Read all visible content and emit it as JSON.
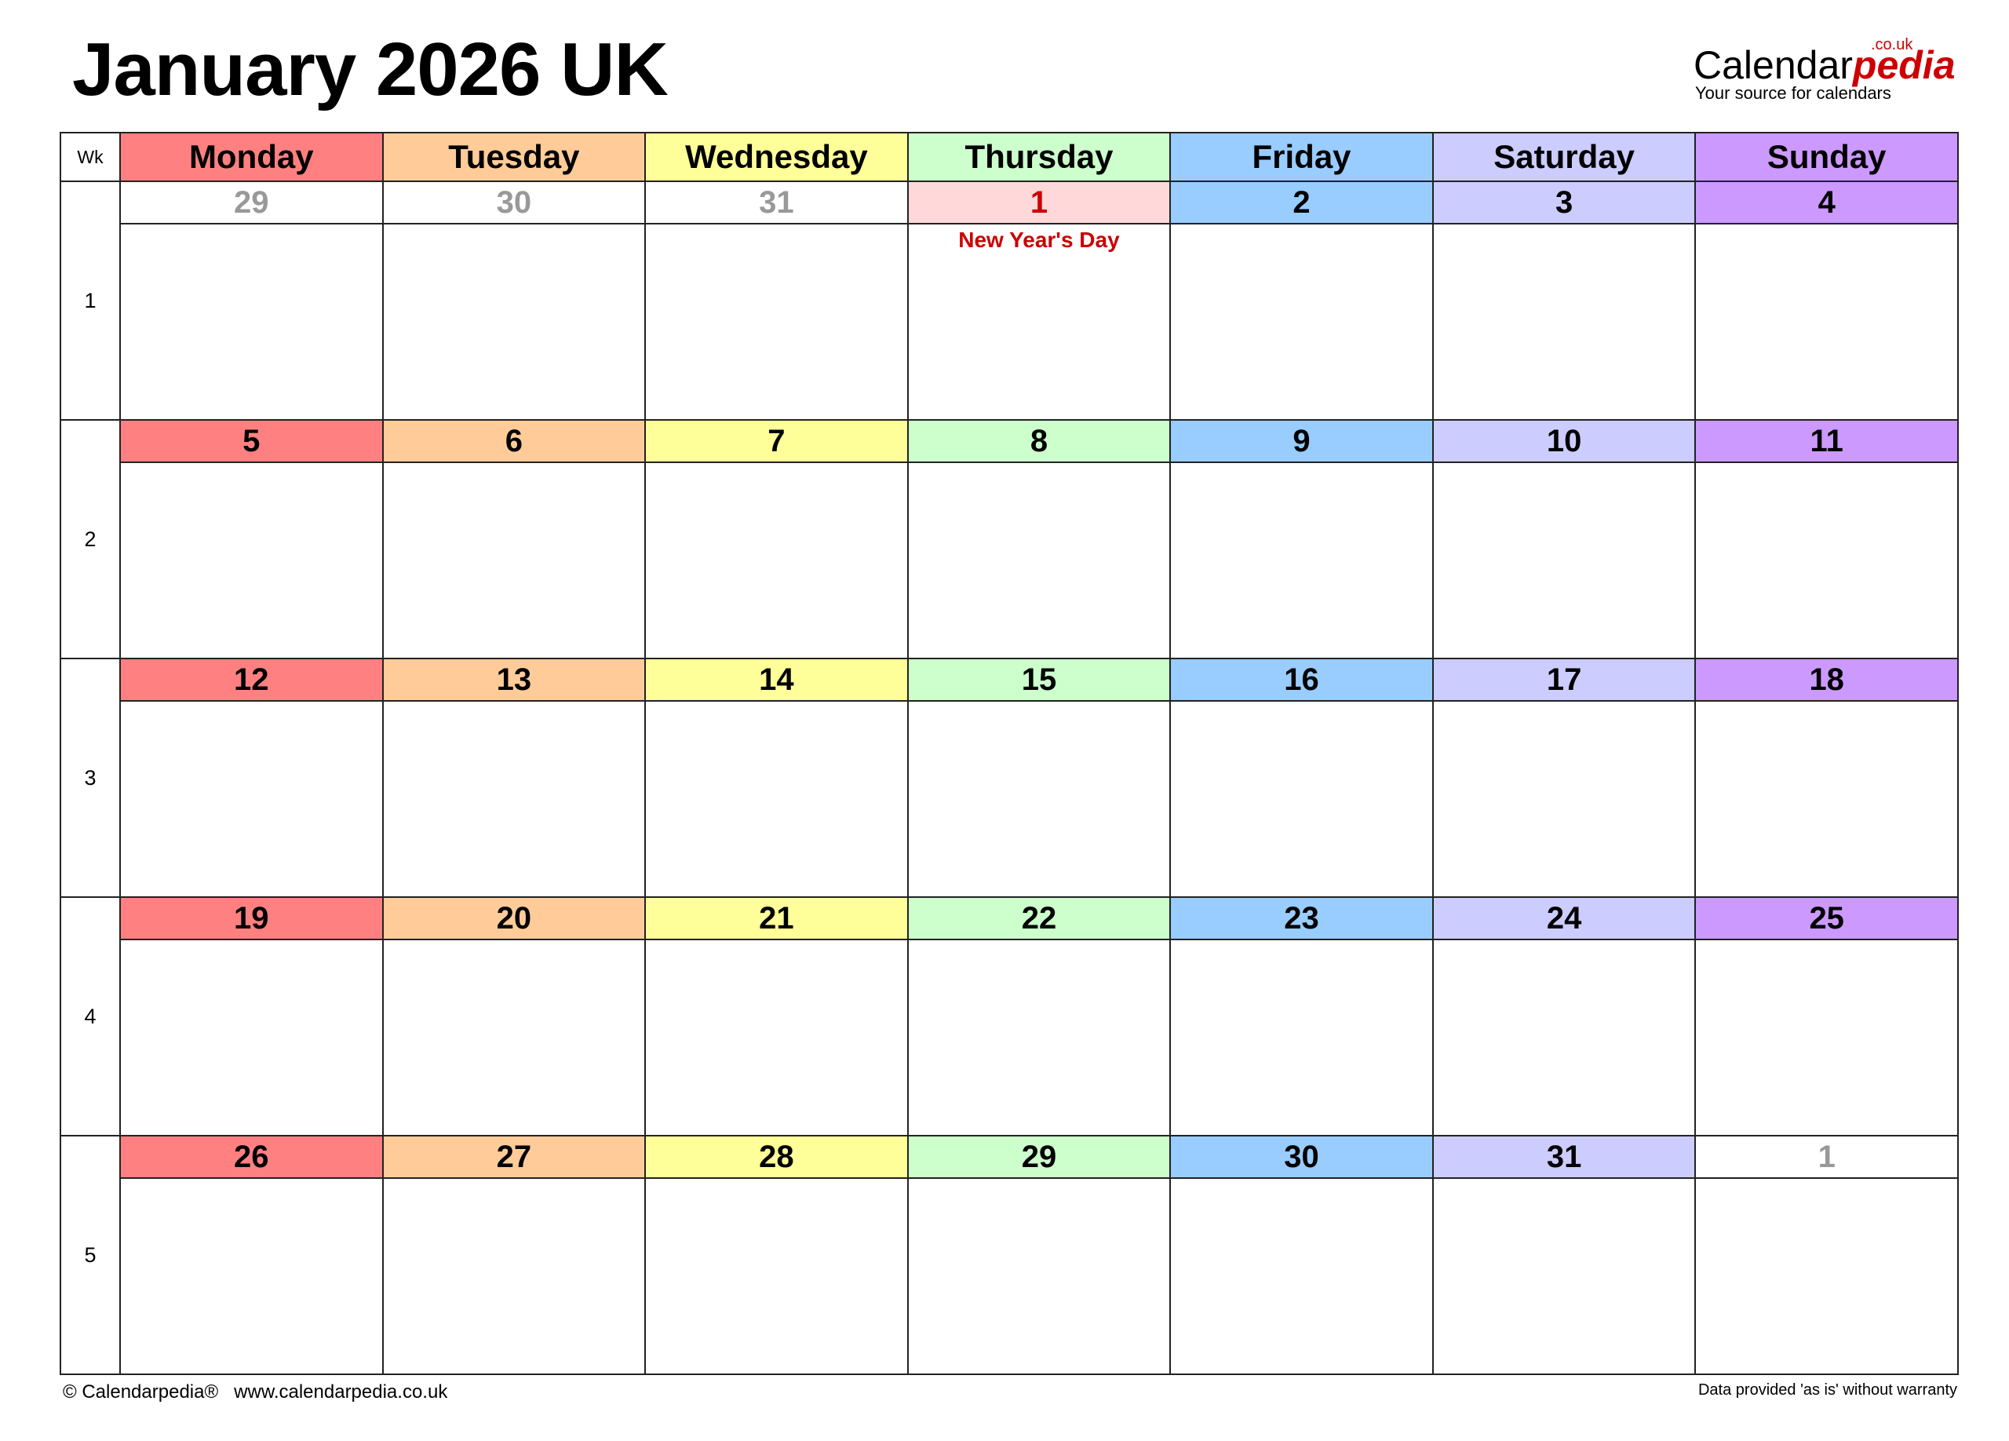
{
  "title": "January 2026 UK",
  "logo": {
    "main": "Calendar",
    "accent": "pedia",
    "suffix": ".co.uk",
    "tagline": "Your source for calendars"
  },
  "header": {
    "wk_label": "Wk",
    "days": [
      "Monday",
      "Tuesday",
      "Wednesday",
      "Thursday",
      "Friday",
      "Saturday",
      "Sunday"
    ],
    "colors": [
      "#FF8080",
      "#FFCC99",
      "#FFFF99",
      "#CCFFCC",
      "#99CCFF",
      "#CCCCFF",
      "#CC99FF"
    ]
  },
  "holiday_color": "#CC0000",
  "weeks": [
    {
      "wk": "1",
      "days": [
        {
          "n": "29",
          "muted": true
        },
        {
          "n": "30",
          "muted": true
        },
        {
          "n": "31",
          "muted": true
        },
        {
          "n": "1",
          "holiday": "New Year's Day"
        },
        {
          "n": "2"
        },
        {
          "n": "3"
        },
        {
          "n": "4"
        }
      ]
    },
    {
      "wk": "2",
      "days": [
        {
          "n": "5"
        },
        {
          "n": "6"
        },
        {
          "n": "7"
        },
        {
          "n": "8"
        },
        {
          "n": "9"
        },
        {
          "n": "10"
        },
        {
          "n": "11"
        }
      ]
    },
    {
      "wk": "3",
      "days": [
        {
          "n": "12"
        },
        {
          "n": "13"
        },
        {
          "n": "14"
        },
        {
          "n": "15"
        },
        {
          "n": "16"
        },
        {
          "n": "17"
        },
        {
          "n": "18"
        }
      ]
    },
    {
      "wk": "4",
      "days": [
        {
          "n": "19"
        },
        {
          "n": "20"
        },
        {
          "n": "21"
        },
        {
          "n": "22"
        },
        {
          "n": "23"
        },
        {
          "n": "24"
        },
        {
          "n": "25"
        }
      ]
    },
    {
      "wk": "5",
      "days": [
        {
          "n": "26"
        },
        {
          "n": "27"
        },
        {
          "n": "28"
        },
        {
          "n": "29"
        },
        {
          "n": "30"
        },
        {
          "n": "31"
        },
        {
          "n": "1",
          "muted": true
        }
      ]
    }
  ],
  "footer": {
    "left": "© Calendarpedia®   www.calendarpedia.co.uk",
    "right": "Data provided 'as is' without warranty"
  }
}
